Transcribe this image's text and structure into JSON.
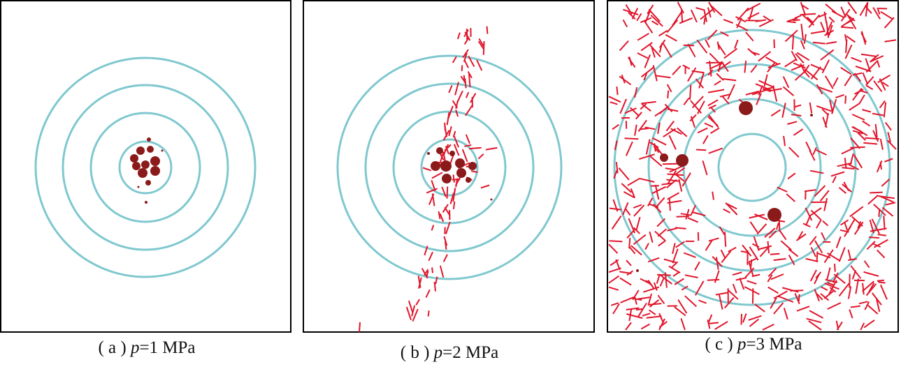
{
  "colors": {
    "ring": "#7fc8cf",
    "fracture": "#e0162b",
    "event": "#8b1a1a",
    "frame": "#000000"
  },
  "panels": [
    {
      "id": "a",
      "caption": {
        "label_prefix": "( a ) ",
        "var": "p",
        "value_text": "=1 MPa"
      },
      "fracture_count": 0,
      "fracture_pattern": "none"
    },
    {
      "id": "b",
      "caption": {
        "label_prefix": "( b ) ",
        "var": "p",
        "value_text": "=2 MPa"
      },
      "fracture_count": 90,
      "fracture_pattern": "band"
    },
    {
      "id": "c",
      "caption": {
        "label_prefix": "( c ) ",
        "var": "p",
        "value_text": "=3 MPa"
      },
      "fracture_count": 640,
      "fracture_pattern": "scatter"
    }
  ]
}
